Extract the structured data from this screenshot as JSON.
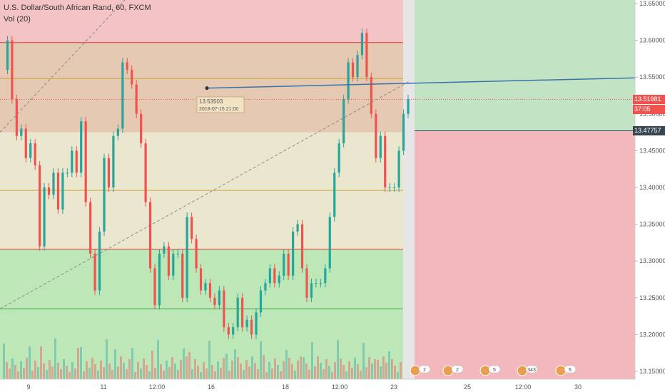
{
  "header": {
    "symbol_title": "U.S. Dollar/South African Rand, 60, FXCM",
    "volume_label": "Vol (20)"
  },
  "chart_data": {
    "type": "candlestick",
    "title": "U.S. Dollar/South African Rand, 60, FXCM",
    "ylim": [
      13.13,
      13.66
    ],
    "y_ticks": [
      "13.65000",
      "13.60000",
      "13.55000",
      "13.50000",
      "13.45000",
      "13.40000",
      "13.35000",
      "13.30000",
      "13.25000",
      "13.20000",
      "13.15000"
    ],
    "x_ticks": [
      "9",
      "11",
      "12:00",
      "16",
      "18",
      "12:00",
      "23",
      "25",
      "12:00",
      "30"
    ],
    "current_price": "13.51981",
    "countdown": "37:05",
    "stop_price": "13.47757",
    "annotation": {
      "price": "13.53503",
      "date": "2018-07-15 21:00"
    },
    "horizontal_levels": [
      13.597,
      13.548,
      13.396,
      13.316,
      13.235
    ],
    "trade_zone": {
      "profit_top": 13.65,
      "entry": 13.477,
      "loss_bottom": 13.13
    },
    "close_path": [
      13.56,
      13.6,
      13.52,
      13.47,
      13.48,
      13.44,
      13.46,
      13.43,
      13.32,
      13.4,
      13.39,
      13.42,
      13.37,
      13.42,
      13.42,
      13.45,
      13.42,
      13.49,
      13.38,
      13.31,
      13.26,
      13.34,
      13.44,
      13.4,
      13.47,
      13.48,
      13.57,
      13.56,
      13.54,
      13.5,
      13.46,
      13.38,
      13.29,
      13.24,
      13.31,
      13.32,
      13.28,
      13.31,
      13.31,
      13.25,
      13.36,
      13.33,
      13.29,
      13.26,
      13.27,
      13.25,
      13.24,
      13.26,
      13.21,
      13.2,
      13.21,
      13.25,
      13.21,
      13.22,
      13.2,
      13.23,
      13.26,
      13.27,
      13.29,
      13.27,
      13.28,
      13.31,
      13.28,
      13.34,
      13.35,
      13.29,
      13.25,
      13.27,
      13.27,
      13.27,
      13.29,
      13.36,
      13.42,
      13.46,
      13.52,
      13.57,
      13.55,
      13.58,
      13.61,
      13.55,
      13.5,
      13.44,
      13.47,
      13.4,
      13.4,
      13.4,
      13.45,
      13.5,
      13.52
    ],
    "events": [
      "2",
      "2",
      "5",
      "343",
      "6"
    ]
  },
  "colors": {
    "up": "#26a69a",
    "down": "#ef5350",
    "profit_zone": "#c8e6c9",
    "loss_zone": "#f2b8bc",
    "trend_line": "#3b72a8",
    "price_tag": "#ef5350",
    "stop_tag": "#37474f"
  }
}
